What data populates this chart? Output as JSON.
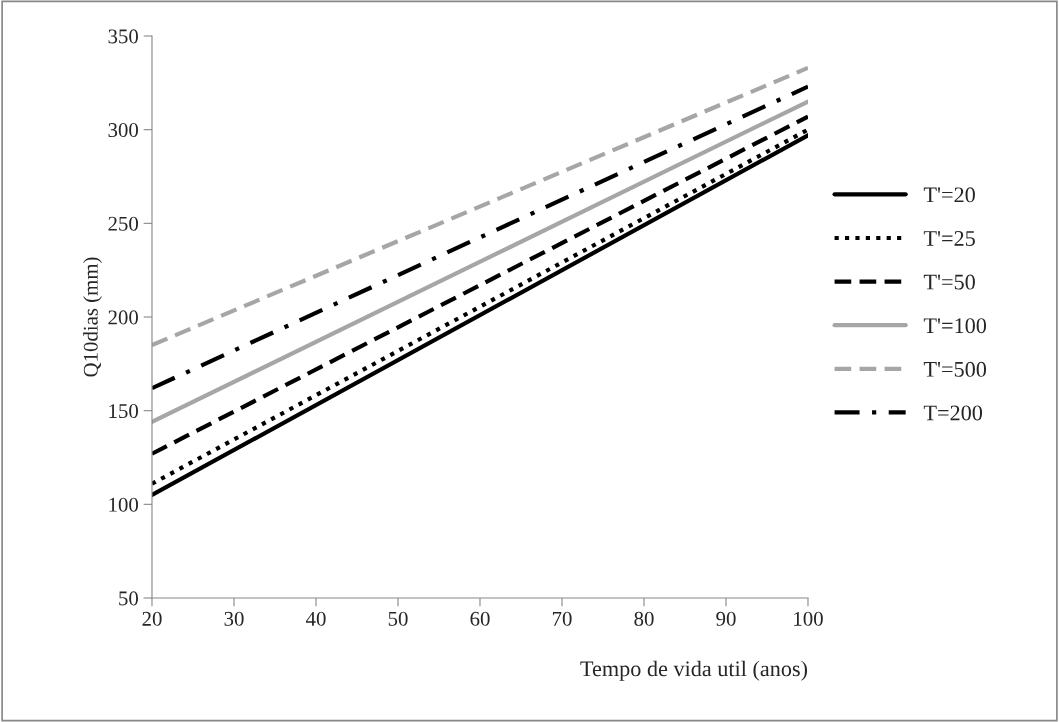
{
  "chart_data": {
    "type": "line",
    "xlabel": "Tempo de vida util (anos)",
    "ylabel": "Q10dias (mm)",
    "x": [
      20,
      100
    ],
    "xlim": [
      20,
      100
    ],
    "xticks": [
      20,
      30,
      40,
      50,
      60,
      70,
      80,
      90,
      100
    ],
    "ylim": [
      50,
      350
    ],
    "yticks": [
      50,
      100,
      150,
      200,
      250,
      300,
      350
    ],
    "grid": false,
    "legend": "right",
    "marker": "none",
    "series": [
      {
        "name": "T'=20",
        "color": "#000000",
        "line_style": "solid",
        "values": [
          105,
          297
        ]
      },
      {
        "name": "T'=25",
        "color": "#000000",
        "line_style": "dotted",
        "values": [
          111,
          300
        ]
      },
      {
        "name": "T'=50",
        "color": "#000000",
        "line_style": "dashed",
        "values": [
          127,
          307
        ]
      },
      {
        "name": "T'=100",
        "color": "#a6a6a6",
        "line_style": "solid",
        "values": [
          144,
          315
        ]
      },
      {
        "name": "T'=500",
        "color": "#a6a6a6",
        "line_style": "dashed",
        "values": [
          185,
          333
        ]
      },
      {
        "name": "T=200",
        "color": "#000000",
        "line_style": "dashdot",
        "values": [
          162,
          323
        ]
      }
    ]
  }
}
